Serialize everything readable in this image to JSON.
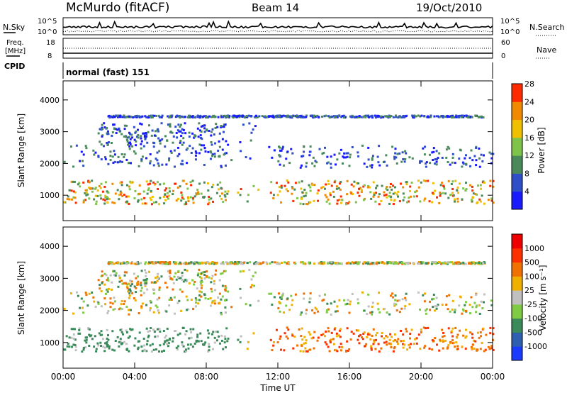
{
  "header": {
    "station": "McMurdo (fitACF)",
    "beam": "Beam 14",
    "date": "19/Oct/2010"
  },
  "top_panel": {
    "left_label": "N.Sky",
    "right_label": "N.Search",
    "left_ticks": [
      "10^5",
      "10^0"
    ],
    "right_ticks": [
      "10^5",
      "10^0"
    ]
  },
  "freq_panel": {
    "left_label_1": "Freq.",
    "left_label_2": "[MHz]",
    "right_label": "Nave",
    "left_ticks": [
      "18",
      "8"
    ],
    "right_ticks": [
      "60",
      "0"
    ]
  },
  "cpid_panel": {
    "label": "CPID",
    "text": "normal (fast) 151"
  },
  "chart_data": [
    {
      "type": "heatmap",
      "title": "",
      "xlabel": "",
      "ylabel": "Slant Range [km]",
      "x_ticks": [
        "00:00",
        "04:00",
        "08:00",
        "12:00",
        "16:00",
        "20:00",
        "00:00"
      ],
      "y_ticks": [
        "1000",
        "2000",
        "3000",
        "4000"
      ],
      "ylim": [
        200,
        4600
      ],
      "colorbar_label": "Power [dB]",
      "colorbar_ticks": [
        "4",
        "8",
        "12",
        "16",
        "20",
        "24",
        "28"
      ],
      "colors": [
        "#1a1aff",
        "#2f4fc8",
        "#4a8a5a",
        "#7fc44a",
        "#f0c000",
        "#f08a00",
        "#ff2a00"
      ]
    },
    {
      "type": "heatmap",
      "title": "",
      "xlabel": "Time UT",
      "ylabel": "Slant Range [km]",
      "x_ticks": [
        "00:00",
        "04:00",
        "08:00",
        "12:00",
        "16:00",
        "20:00",
        "00:00"
      ],
      "y_ticks": [
        "1000",
        "2000",
        "3000",
        "4000"
      ],
      "ylim": [
        200,
        4600
      ],
      "colorbar_label": "Velocity [m s⁻¹]",
      "colorbar_ticks": [
        "1000",
        "500",
        "100",
        "25",
        "-25",
        "-100",
        "-500",
        "-1000"
      ],
      "colors": [
        "#1a3aff",
        "#2f5fb0",
        "#3a8a5a",
        "#7fcc44",
        "#c0c0c0",
        "#f0b000",
        "#f07000",
        "#ff3000",
        "#ee0000"
      ]
    }
  ]
}
